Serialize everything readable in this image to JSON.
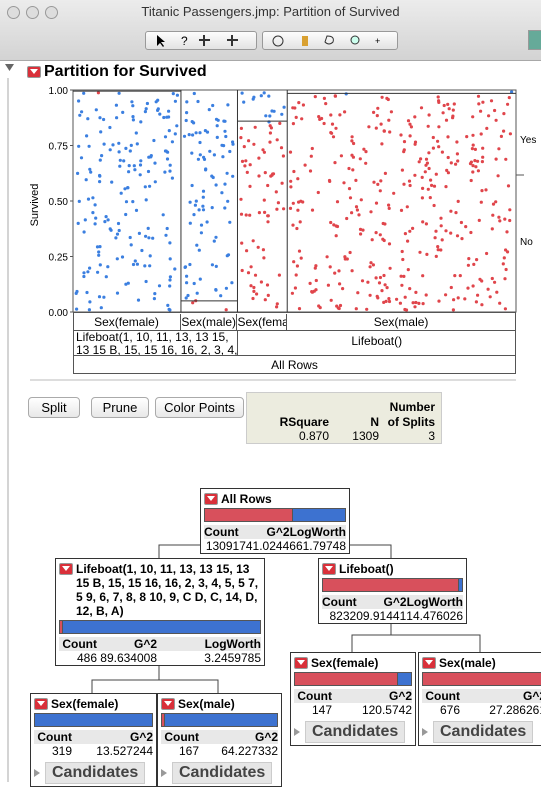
{
  "window": {
    "title": "Titanic Passengers.jmp: Partition of Survived"
  },
  "report": {
    "title": "Partition for Survived"
  },
  "plot": {
    "y_label": "Survived",
    "yticks": [
      "1.00",
      "0.75",
      "0.50",
      "0.25",
      "0.00"
    ],
    "right_labels": [
      "Yes",
      "No"
    ],
    "all_rows": "All Rows"
  },
  "buttons": [
    "Split",
    "Prune",
    "Color Points"
  ],
  "stats": {
    "headers": [
      "RSquare",
      "N",
      "Number of Splits"
    ],
    "values": [
      "0.870",
      1309,
      3
    ]
  },
  "labels": {
    "count": "Count",
    "g2": "G^2",
    "logworth": "LogWorth",
    "candidates": "Candidates"
  },
  "nodes": [
    {
      "title": "All Rows",
      "count": 1309,
      "g2": "1741.0244",
      "logworth": "661.79748"
    },
    {
      "title": "Lifeboat(1, 10, 11, 13, 13 15, 13 15 B, 15, 15 16, 16, 2, 3, 4, 5, 5 7, 5 9, 6, 7, 8, 8 10, 9, C D, C, 14, D, 12, B, A)",
      "count": 486,
      "g2": "89.634008",
      "logworth": "3.2459785"
    },
    {
      "title": "Lifeboat()",
      "count": 823,
      "g2": "209.91441",
      "logworth": "14.476026"
    },
    {
      "title": "Sex(female)",
      "count": 319,
      "g2": "13.527244"
    },
    {
      "title": "Sex(male)",
      "count": 167,
      "g2": "64.227332"
    },
    {
      "title": "Sex(female)",
      "count": 147,
      "g2": "120.5742"
    },
    {
      "title": "Sex(male)",
      "count": 676,
      "g2": "27.286261"
    }
  ]
}
